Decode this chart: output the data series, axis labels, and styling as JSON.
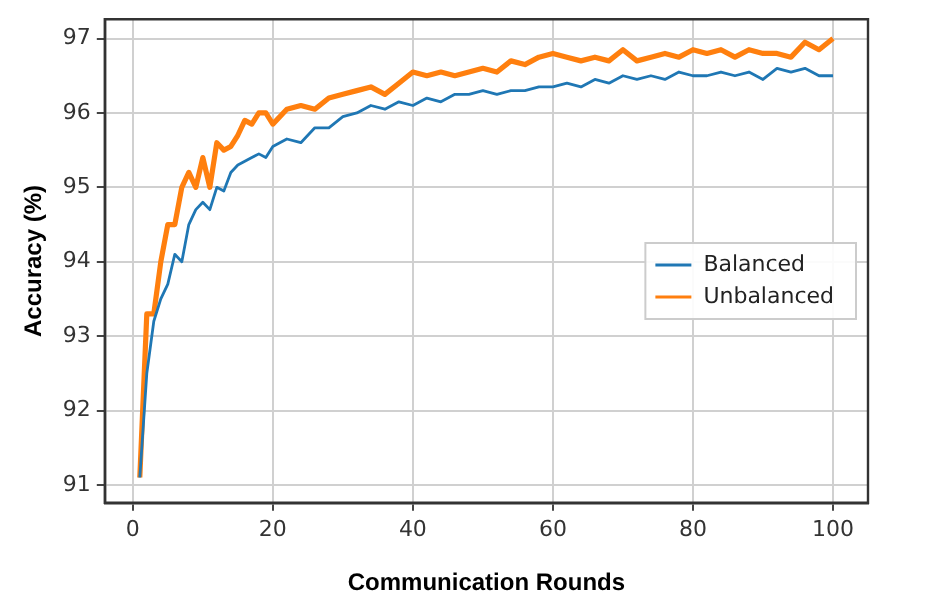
{
  "chart_data": {
    "type": "line",
    "xlabel": "Communication Rounds",
    "ylabel": "Accuracy (%)",
    "xlim": [
      -4,
      105
    ],
    "xticks": [
      0,
      20,
      40,
      60,
      80,
      100
    ],
    "ylim": [
      90.76,
      97.26
    ],
    "yticks": [
      91,
      92,
      93,
      94,
      95,
      96,
      97
    ],
    "grid": true,
    "legend": "center right",
    "line_style": "solid",
    "marker": "none",
    "series": [
      {
        "name": "Balanced",
        "color": "#1f77b4",
        "x": [
          1,
          2,
          3,
          4,
          5,
          6,
          7,
          8,
          9,
          10,
          11,
          12,
          13,
          14,
          15,
          16,
          17,
          18,
          19,
          20,
          22,
          24,
          26,
          28,
          30,
          32,
          34,
          36,
          38,
          40,
          42,
          44,
          46,
          48,
          50,
          52,
          54,
          56,
          58,
          60,
          62,
          64,
          66,
          68,
          70,
          72,
          74,
          76,
          78,
          80,
          82,
          84,
          86,
          88,
          90,
          92,
          94,
          96,
          98,
          100
        ],
        "values": [
          91.1,
          92.5,
          93.2,
          93.5,
          93.7,
          94.1,
          94.0,
          94.5,
          94.7,
          94.8,
          94.7,
          95.0,
          94.95,
          95.2,
          95.3,
          95.35,
          95.4,
          95.45,
          95.4,
          95.55,
          95.65,
          95.6,
          95.8,
          95.8,
          95.95,
          96.0,
          96.1,
          96.05,
          96.15,
          96.1,
          96.2,
          96.15,
          96.25,
          96.25,
          96.3,
          96.25,
          96.3,
          96.3,
          96.35,
          96.35,
          96.4,
          96.35,
          96.45,
          96.4,
          96.5,
          96.45,
          96.5,
          96.45,
          96.55,
          96.5,
          96.5,
          96.55,
          96.5,
          96.55,
          96.45,
          96.6,
          96.55,
          96.6,
          96.5,
          96.5
        ]
      },
      {
        "name": "Unbalanced",
        "color": "#ff7f0e",
        "x": [
          1,
          2,
          3,
          4,
          5,
          6,
          7,
          8,
          9,
          10,
          11,
          12,
          13,
          14,
          15,
          16,
          17,
          18,
          19,
          20,
          22,
          24,
          26,
          28,
          30,
          32,
          34,
          36,
          38,
          40,
          42,
          44,
          46,
          48,
          50,
          52,
          54,
          56,
          58,
          60,
          62,
          64,
          66,
          68,
          70,
          72,
          74,
          76,
          78,
          80,
          82,
          84,
          86,
          88,
          90,
          92,
          94,
          96,
          98,
          100
        ],
        "values": [
          91.1,
          93.3,
          93.3,
          94.0,
          94.5,
          94.5,
          95.0,
          95.2,
          95.0,
          95.4,
          95.0,
          95.6,
          95.5,
          95.55,
          95.7,
          95.9,
          95.85,
          96.0,
          96.0,
          95.85,
          96.05,
          96.1,
          96.05,
          96.2,
          96.25,
          96.3,
          96.35,
          96.25,
          96.4,
          96.55,
          96.5,
          96.55,
          96.5,
          96.55,
          96.6,
          96.55,
          96.7,
          96.65,
          96.75,
          96.8,
          96.75,
          96.7,
          96.75,
          96.7,
          96.85,
          96.7,
          96.75,
          96.8,
          96.75,
          96.85,
          96.8,
          96.85,
          96.75,
          96.85,
          96.8,
          96.8,
          96.75,
          96.95,
          96.85,
          97.0
        ]
      }
    ]
  }
}
